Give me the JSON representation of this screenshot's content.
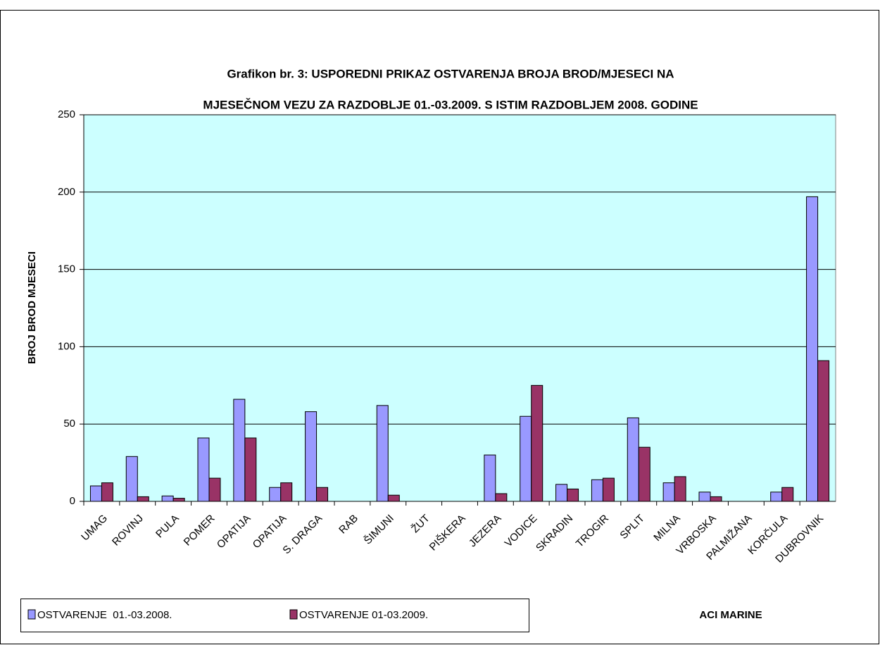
{
  "chart_data": {
    "type": "bar",
    "title": [
      "Grafikon br. 3: USPOREDNI PRIKAZ OSTVARENJA BROJA BROD/MJESECI NA",
      "MJESEČNOM VEZU ZA RAZDOBLJE 01.-03.2009. S ISTIM RAZDOBLJEM 2008. GODINE"
    ],
    "y_label": "BROJ BROD MJESECI",
    "x_label": "ACI MARINE",
    "categories": [
      "UMAG",
      "ROVINJ",
      "PULA",
      "POMER",
      "OPATIJA",
      "OPATIJA",
      "S. DRAGA",
      "RAB",
      "ŠIMUNI",
      "ŽUT",
      "PIŠKERA",
      "JEZERA",
      "VODICE",
      "SKRADIN",
      "TROGIR",
      "SPLIT",
      "MILNA",
      "VRBOSKA",
      "PALMIŽANA",
      "KORČULA",
      "DUBROVNIK"
    ],
    "series": [
      {
        "name": "OSTVARENJE  01.-03.2008.",
        "color": "#9999ff",
        "values": [
          10,
          29,
          3.5,
          41,
          66,
          9,
          58,
          0,
          62,
          0,
          0,
          30,
          55,
          11,
          14,
          54,
          12,
          6,
          0,
          6,
          197
        ]
      },
      {
        "name": "OSTVARENJE 01-03.2009.",
        "color": "#993366",
        "values": [
          12,
          3,
          2,
          15,
          41,
          12,
          9,
          0,
          4,
          0,
          0,
          5,
          75,
          8,
          15,
          35,
          16,
          3,
          0,
          9,
          91
        ]
      }
    ],
    "ylim": [
      0,
      250
    ],
    "yticks": [
      0,
      50,
      100,
      150,
      200,
      250
    ],
    "grid": true,
    "background": "#ccffff"
  }
}
